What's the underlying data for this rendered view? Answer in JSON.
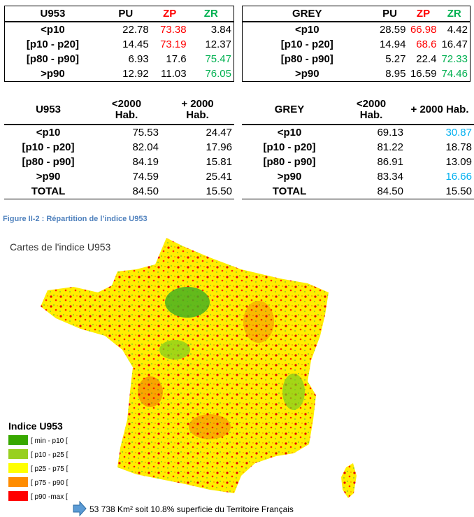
{
  "tables": [
    {
      "header": [
        "U953",
        "PU",
        {
          "text": "ZP",
          "color": "#ff0000"
        },
        {
          "text": "ZR",
          "color": "#00b050"
        }
      ],
      "rows": [
        [
          "<p10",
          "22.78",
          {
            "text": "73.38",
            "color": "#ff0000"
          },
          "3.84"
        ],
        [
          "[p10 - p20]",
          "14.45",
          {
            "text": "73.19",
            "color": "#ff0000"
          },
          "12.37"
        ],
        [
          "[p80 - p90]",
          "6.93",
          "17.6",
          {
            "text": "75.47",
            "color": "#00b050"
          }
        ],
        [
          ">p90",
          "12.92",
          "11.03",
          {
            "text": "76.05",
            "color": "#00b050"
          }
        ]
      ]
    },
    {
      "header": [
        "GREY",
        "PU",
        {
          "text": "ZP",
          "color": "#ff0000"
        },
        {
          "text": "ZR",
          "color": "#00b050"
        }
      ],
      "rows": [
        [
          "<p10",
          "28.59",
          {
            "text": "66.98",
            "color": "#ff0000"
          },
          "4.42"
        ],
        [
          "[p10 - p20]",
          "14.94",
          {
            "text": "68.6",
            "color": "#ff0000"
          },
          "16.47"
        ],
        [
          "[p80 - p90]",
          "5.27",
          "22.4",
          {
            "text": "72.33",
            "color": "#00b050"
          }
        ],
        [
          ">p90",
          "8.95",
          "16.59",
          {
            "text": "74.46",
            "color": "#00b050"
          }
        ]
      ]
    },
    {
      "header": [
        "U953",
        "<2000\nHab.",
        "+ 2000\nHab."
      ],
      "rows": [
        [
          "<p10",
          "75.53",
          "24.47"
        ],
        [
          "[p10 - p20]",
          "82.04",
          "17.96"
        ],
        [
          "[p80 - p90]",
          "84.19",
          "15.81"
        ],
        [
          ">p90",
          "74.59",
          "25.41"
        ],
        [
          "TOTAL",
          "84.50",
          "15.50"
        ]
      ]
    },
    {
      "header": [
        "GREY",
        "<2000\nHab.",
        "+ 2000 Hab."
      ],
      "rows": [
        [
          "<p10",
          "69.13",
          {
            "text": "30.87",
            "color": "#00b0f0"
          }
        ],
        [
          "[p10 - p20]",
          "81.22",
          "18.78"
        ],
        [
          "[p80 - p90]",
          "86.91",
          "13.09"
        ],
        [
          ">p90",
          "83.34",
          {
            "text": "16.66",
            "color": "#00b0f0"
          }
        ],
        [
          "TOTAL",
          "84.50",
          "15.50"
        ]
      ]
    }
  ],
  "caption": "Figure II-2 : Répartition de l’indice U953",
  "map": {
    "title": "Cartes de l'indice U953",
    "legend_title": "Indice U953",
    "legend": [
      {
        "label": "[ min - p10 [",
        "color": "#38a800"
      },
      {
        "label": "[ p10 - p25 [",
        "color": "#98d020"
      },
      {
        "label": "[ p25 - p75 [",
        "color": "#ffff00"
      },
      {
        "label": "[ p75 - p90 [",
        "color": "#ff8c00"
      },
      {
        "label": "[ p90 -max [",
        "color": "#ff0000"
      }
    ],
    "annotation": "53 738 Km² soit 10.8% superficie du Territoire Français"
  }
}
